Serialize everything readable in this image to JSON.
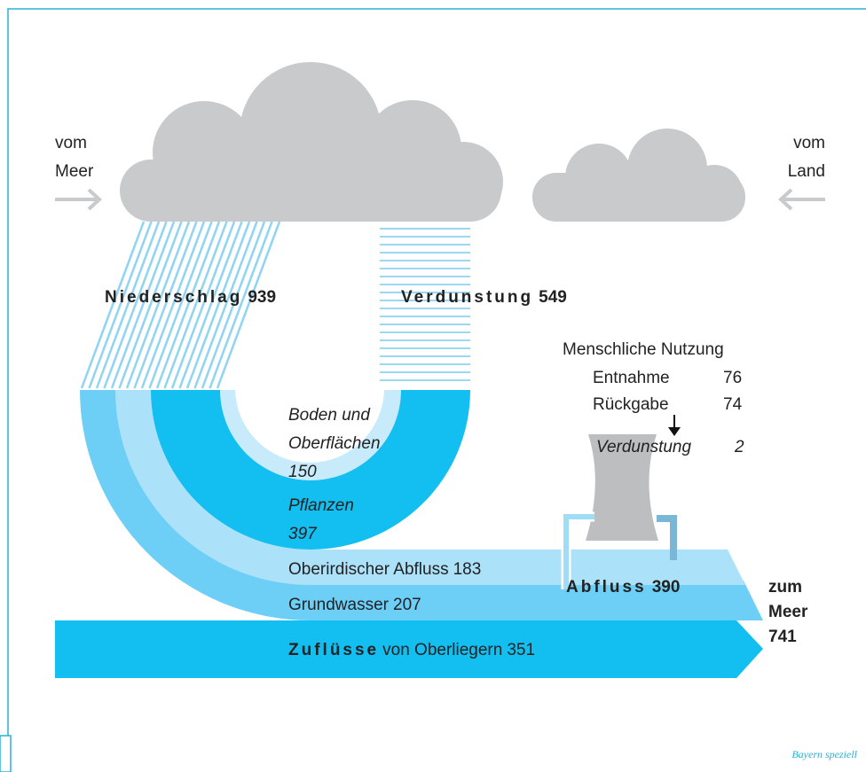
{
  "sources": {
    "left": [
      "vom",
      "Meer"
    ],
    "right": [
      "vom",
      "Land"
    ]
  },
  "precipitation": {
    "label": "Niederschlag",
    "value": 939
  },
  "evaporation": {
    "label": "Verdunstung",
    "value": 549
  },
  "human_use": {
    "title": "Menschliche Nutzung",
    "withdrawal": {
      "label": "Entnahme",
      "value": 76
    },
    "return": {
      "label": "Rückgabe",
      "value": 74
    },
    "evaporation": {
      "label": "Verdunstung",
      "value": 2
    }
  },
  "soil": {
    "label": [
      "Boden und",
      "Oberflächen"
    ],
    "value": 150
  },
  "plants": {
    "label": "Pflanzen",
    "value": 397
  },
  "surface_runoff": {
    "label": "Oberirdischer Abfluss",
    "value": 183
  },
  "groundwater": {
    "label": "Grundwasser",
    "value": 207
  },
  "runoff": {
    "label": "Abfluss",
    "value": 390
  },
  "to_sea": {
    "label": [
      "zum",
      "Meer"
    ],
    "value": 741
  },
  "inflow": {
    "label": "Zuflüsse",
    "suffix": "von Oberliegern",
    "value": 351
  },
  "footer": "Bayern speziell"
}
